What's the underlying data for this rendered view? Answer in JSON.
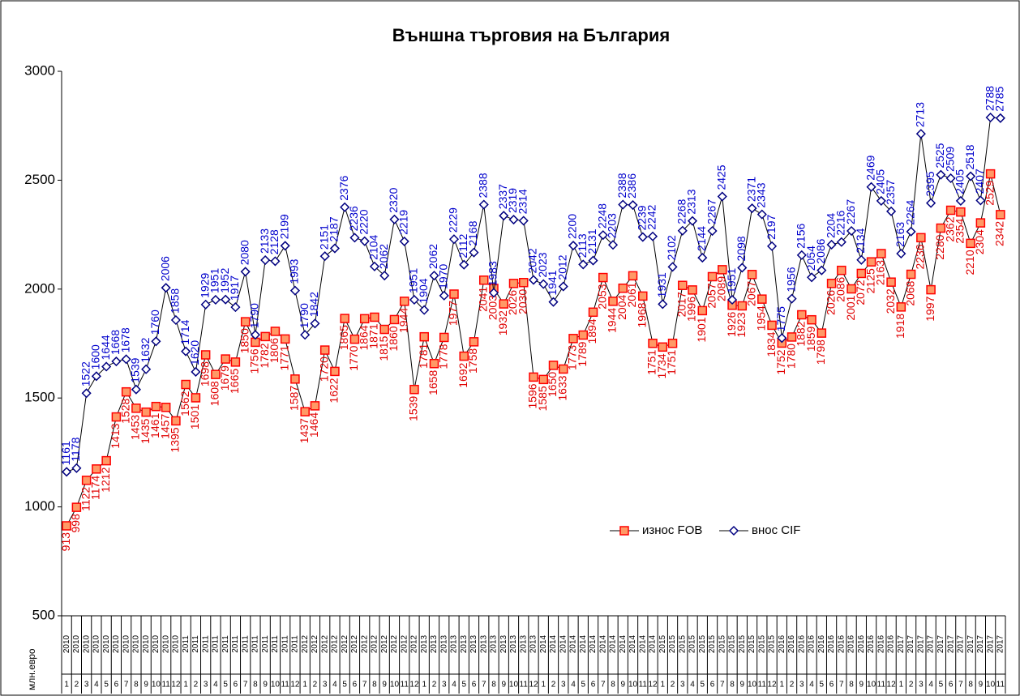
{
  "chart_data": {
    "type": "line",
    "title": "Външна търговия на България",
    "y_label": "млн.евро",
    "categories": [
      "1",
      "2",
      "3",
      "4",
      "5",
      "6",
      "7",
      "8",
      "9",
      "10",
      "11",
      "12",
      "1",
      "2",
      "3",
      "4",
      "5",
      "6",
      "7",
      "8",
      "9",
      "10",
      "11",
      "12",
      "1",
      "2",
      "3",
      "4",
      "5",
      "6",
      "7",
      "8",
      "9",
      "10",
      "11",
      "12",
      "1",
      "2",
      "3",
      "4",
      "5",
      "6",
      "7",
      "8",
      "9",
      "10",
      "11",
      "12",
      "1",
      "2",
      "3",
      "4",
      "5",
      "6",
      "7",
      "8",
      "9",
      "10",
      "11",
      "12",
      "1",
      "2",
      "3",
      "4",
      "5",
      "6",
      "7",
      "8",
      "9",
      "10",
      "11",
      "12",
      "1",
      "2",
      "3",
      "4",
      "5",
      "6",
      "7",
      "8",
      "9",
      "10",
      "11",
      "12",
      "1",
      "2",
      "3",
      "4",
      "5",
      "6",
      "7",
      "8",
      "9",
      "10",
      "11"
    ],
    "category_years": [
      "2010",
      "2010",
      "2010",
      "2010",
      "2010",
      "2010",
      "2010",
      "2010",
      "2010",
      "2010",
      "2010",
      "2010",
      "2011",
      "2011",
      "2011",
      "2011",
      "2011",
      "2011",
      "2011",
      "2011",
      "2011",
      "2011",
      "2011",
      "2011",
      "2012",
      "2012",
      "2012",
      "2012",
      "2012",
      "2012",
      "2012",
      "2012",
      "2012",
      "2012",
      "2012",
      "2012",
      "2013",
      "2013",
      "2013",
      "2013",
      "2013",
      "2013",
      "2013",
      "2013",
      "2013",
      "2013",
      "2013",
      "2013",
      "2014",
      "2014",
      "2014",
      "2014",
      "2014",
      "2014",
      "2014",
      "2014",
      "2014",
      "2014",
      "2014",
      "2014",
      "2015",
      "2015",
      "2015",
      "2015",
      "2015",
      "2015",
      "2015",
      "2015",
      "2015",
      "2015",
      "2015",
      "2015",
      "2016",
      "2016",
      "2016",
      "2016",
      "2016",
      "2016",
      "2016",
      "2016",
      "2016",
      "2016",
      "2016",
      "2016",
      "2017",
      "2017",
      "2017",
      "2017",
      "2017",
      "2017",
      "2017",
      "2017",
      "2017",
      "2017",
      "2017"
    ],
    "series": [
      {
        "name": "износ FOB",
        "color": "#e00000",
        "marker": "square",
        "values": [
          913,
          998,
          1122,
          1174,
          1212,
          1413,
          1528,
          1453,
          1435,
          1461,
          1457,
          1395,
          1562,
          1501,
          1698,
          1608,
          1679,
          1665,
          1850,
          1756,
          1782,
          1806,
          1771,
          1587,
          1437,
          1464,
          1720,
          1622,
          1865,
          1770,
          1864,
          1871,
          1815,
          1860,
          1944,
          1539,
          1781,
          1658,
          1778,
          1977,
          1692,
          1758,
          2041,
          2003,
          1932,
          2026,
          2030,
          1596,
          1585,
          1650,
          1633,
          1773,
          1789,
          1894,
          2053,
          1944,
          2004,
          2061,
          1968,
          1751,
          1734,
          1751,
          2017,
          1996,
          1901,
          2057,
          2089,
          1926,
          1923,
          2067,
          1954,
          1834,
          1752,
          1780,
          1882,
          1859,
          1798,
          2026,
          2086,
          2001,
          2072,
          2125,
          2163,
          2032,
          1918,
          2068,
          2236,
          1997,
          2280,
          2362,
          2354,
          2210,
          2304,
          2529,
          2342
        ]
      },
      {
        "name": "внос CIF",
        "color": "#0000cc",
        "marker": "diamond",
        "values": [
          1161,
          1178,
          1522,
          1600,
          1644,
          1668,
          1678,
          1539,
          1632,
          1760,
          2006,
          1858,
          1714,
          1620,
          1929,
          1951,
          1952,
          1917,
          2080,
          1790,
          2133,
          2128,
          2199,
          1993,
          1790,
          1842,
          2151,
          2187,
          2376,
          2236,
          2220,
          2104,
          2062,
          2320,
          2219,
          1951,
          1904,
          2062,
          1970,
          2229,
          2112,
          2168,
          2388,
          1983,
          2337,
          2319,
          2314,
          2042,
          2023,
          1941,
          2012,
          2200,
          2113,
          2131,
          2248,
          2203,
          2388,
          2386,
          2239,
          2242,
          1931,
          2102,
          2268,
          2313,
          2144,
          2267,
          2425,
          1951,
          2098,
          2371,
          2343,
          2197,
          1775,
          1956,
          2156,
          2054,
          2086,
          2204,
          2216,
          2267,
          2134,
          2469,
          2405,
          2357,
          2163,
          2264,
          2713,
          2395,
          2525,
          2509,
          2405,
          2518,
          2407,
          2788,
          2785
        ]
      }
    ],
    "ylim": [
      500,
      3000
    ],
    "yticks": [
      500,
      1000,
      1500,
      2000,
      2500,
      3000
    ]
  }
}
